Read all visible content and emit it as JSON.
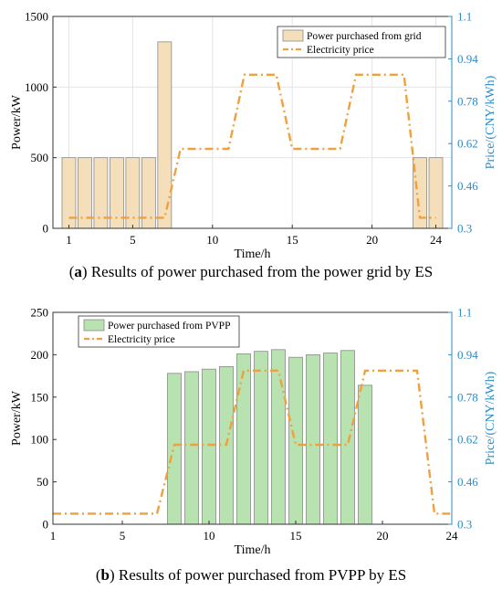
{
  "captions": [
    {
      "letter": "a",
      "text": "Results of power purchased from the power grid by ES"
    },
    {
      "letter": "b",
      "text": "Results of power purchased from PVPP by ES"
    }
  ],
  "chart_data": [
    {
      "type": "bar",
      "xlabel": "Time/h",
      "ylabel": "Power/kW",
      "y2label": "Price/(CNY/kWh)",
      "x": [
        1,
        2,
        3,
        4,
        5,
        6,
        7,
        8,
        9,
        10,
        11,
        12,
        13,
        14,
        15,
        16,
        17,
        18,
        19,
        20,
        21,
        22,
        23,
        24
      ],
      "xticks": [
        1,
        5,
        10,
        15,
        20,
        24
      ],
      "xlim": [
        0,
        25
      ],
      "ylim": [
        0,
        1500
      ],
      "yticks": [
        0,
        500,
        1000,
        1500
      ],
      "y2lim": [
        0.3,
        1.1
      ],
      "y2ticks": [
        "0.3",
        "0.46",
        "0.62",
        "0.78",
        "0.94",
        "1.1"
      ],
      "grid": true,
      "legend_position": "top-right",
      "series": [
        {
          "name": "Power purchased from grid",
          "kind": "bar",
          "axis": "left",
          "color": "#f5dfbb",
          "values": [
            500,
            500,
            500,
            500,
            500,
            500,
            1320,
            0,
            0,
            0,
            0,
            0,
            0,
            0,
            0,
            0,
            0,
            0,
            0,
            0,
            0,
            0,
            500,
            500
          ]
        },
        {
          "name": "Electricity price",
          "kind": "line",
          "axis": "right",
          "color": "#f0a03c",
          "values": [
            0.34,
            0.34,
            0.34,
            0.34,
            0.34,
            0.34,
            0.34,
            0.6,
            0.6,
            0.6,
            0.6,
            0.88,
            0.88,
            0.88,
            0.6,
            0.6,
            0.6,
            0.6,
            0.88,
            0.88,
            0.88,
            0.88,
            0.34,
            0.34
          ]
        }
      ]
    },
    {
      "type": "bar",
      "xlabel": "Time/h",
      "ylabel": "Power/kW",
      "y2label": "Price/(CNY/kWh)",
      "x": [
        1,
        2,
        3,
        4,
        5,
        6,
        7,
        8,
        9,
        10,
        11,
        12,
        13,
        14,
        15,
        16,
        17,
        18,
        19,
        20,
        21,
        22,
        23,
        24
      ],
      "xticks": [
        1,
        5,
        10,
        15,
        20,
        24
      ],
      "xlim": [
        1,
        24
      ],
      "ylim": [
        0,
        250
      ],
      "yticks": [
        0,
        50,
        100,
        150,
        200,
        250
      ],
      "y2lim": [
        0.3,
        1.1
      ],
      "y2ticks": [
        "0.3",
        "0.46",
        "0.62",
        "0.78",
        "0.94",
        "1.1"
      ],
      "grid": false,
      "legend_position": "top-left",
      "series": [
        {
          "name": "Power purchased from PVPP",
          "kind": "bar",
          "axis": "left",
          "color": "#b8e2b0",
          "values": [
            0,
            0,
            0,
            0,
            0,
            0,
            0,
            178,
            180,
            183,
            186,
            201,
            204,
            206,
            197,
            200,
            202,
            205,
            164,
            0,
            0,
            0,
            0,
            0
          ]
        },
        {
          "name": "Electricity price",
          "kind": "line",
          "axis": "right",
          "color": "#f0a03c",
          "values": [
            0.34,
            0.34,
            0.34,
            0.34,
            0.34,
            0.34,
            0.34,
            0.6,
            0.6,
            0.6,
            0.6,
            0.88,
            0.88,
            0.88,
            0.6,
            0.6,
            0.6,
            0.6,
            0.88,
            0.88,
            0.88,
            0.88,
            0.34,
            0.34
          ]
        }
      ]
    }
  ]
}
